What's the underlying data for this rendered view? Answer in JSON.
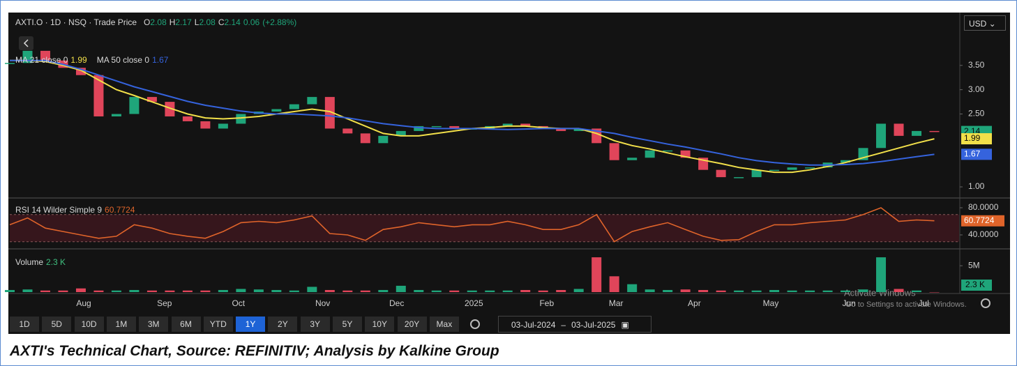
{
  "chart_data": [
    {
      "type": "candlestick",
      "title": "AXTI.O · 1D · NSQ · Trade Price",
      "ohlc": [
        {
          "label": "O",
          "value": 2.08
        },
        {
          "label": "H",
          "value": 2.17
        },
        {
          "label": "L",
          "value": 2.08
        },
        {
          "label": "C",
          "value": 2.14
        }
      ],
      "change": 0.06,
      "change_label": "(+2.88%)",
      "up_color": "#1fa57a",
      "down_color": "#e0455a",
      "x": [
        0,
        1,
        2,
        3,
        4,
        5,
        6,
        7,
        8,
        9,
        10,
        11,
        12,
        13,
        14,
        15,
        16,
        17,
        18,
        19,
        20,
        21,
        22,
        23,
        24,
        25,
        26,
        27,
        28,
        29,
        30,
        31,
        32,
        33,
        34,
        35,
        36,
        37,
        38,
        39,
        40,
        41,
        42,
        43,
        44,
        45,
        46,
        47,
        48,
        49,
        50,
        51,
        52
      ],
      "values": [
        3.55,
        3.8,
        3.6,
        3.45,
        3.3,
        2.45,
        2.5,
        2.85,
        2.75,
        2.45,
        2.35,
        2.2,
        2.3,
        2.5,
        2.55,
        2.6,
        2.7,
        2.85,
        2.2,
        2.1,
        1.9,
        2.05,
        2.15,
        2.25,
        2.25,
        2.2,
        2.2,
        2.25,
        2.3,
        2.25,
        2.2,
        2.15,
        2.2,
        1.9,
        1.55,
        1.6,
        1.75,
        1.75,
        1.6,
        1.35,
        1.2,
        1.2,
        1.35,
        1.35,
        1.4,
        1.4,
        1.5,
        1.55,
        1.8,
        2.3,
        2.05,
        2.15,
        2.14
      ],
      "series": [
        {
          "name": "MA 21 close 0",
          "color": "#f2e04a",
          "values": [
            3.6,
            3.6,
            3.58,
            3.5,
            3.4,
            3.2,
            3.0,
            2.88,
            2.75,
            2.62,
            2.5,
            2.42,
            2.4,
            2.42,
            2.45,
            2.5,
            2.55,
            2.6,
            2.55,
            2.4,
            2.25,
            2.1,
            2.05,
            2.05,
            2.1,
            2.15,
            2.2,
            2.22,
            2.25,
            2.25,
            2.22,
            2.2,
            2.2,
            2.1,
            1.95,
            1.85,
            1.78,
            1.7,
            1.62,
            1.55,
            1.48,
            1.4,
            1.35,
            1.3,
            1.3,
            1.35,
            1.42,
            1.5,
            1.6,
            1.7,
            1.8,
            1.9,
            1.99
          ]
        },
        {
          "name": "MA 50 close 0",
          "color": "#3563dd",
          "values": [
            3.6,
            3.6,
            3.6,
            3.52,
            3.42,
            3.3,
            3.18,
            3.06,
            2.96,
            2.86,
            2.76,
            2.68,
            2.62,
            2.56,
            2.52,
            2.5,
            2.5,
            2.48,
            2.46,
            2.42,
            2.36,
            2.3,
            2.26,
            2.22,
            2.2,
            2.2,
            2.2,
            2.19,
            2.18,
            2.19,
            2.2,
            2.2,
            2.2,
            2.15,
            2.1,
            2.02,
            1.95,
            1.88,
            1.82,
            1.75,
            1.68,
            1.6,
            1.54,
            1.5,
            1.47,
            1.45,
            1.45,
            1.46,
            1.48,
            1.52,
            1.57,
            1.62,
            1.67
          ]
        }
      ],
      "xlim": [
        0,
        53
      ],
      "xticks": [
        {
          "value": 4.16,
          "label": "Aug"
        },
        {
          "value": 8.7,
          "label": "Sep"
        },
        {
          "value": 12.86,
          "label": "Oct"
        },
        {
          "value": 17.6,
          "label": "Nov"
        },
        {
          "value": 21.76,
          "label": "Dec"
        },
        {
          "value": 26.1,
          "label": "2025"
        },
        {
          "value": 30.2,
          "label": "Feb"
        },
        {
          "value": 34.1,
          "label": "Mar"
        },
        {
          "value": 38.5,
          "label": "Apr"
        },
        {
          "value": 42.8,
          "label": "May"
        },
        {
          "value": 47.2,
          "label": "Jun"
        },
        {
          "value": 51.4,
          "label": "Jul"
        }
      ],
      "ylim": [
        0.8,
        4.53
      ],
      "yticks": [
        {
          "value": 1,
          "label": "1.00"
        },
        {
          "value": 2.5,
          "label": "2.50"
        },
        {
          "value": 3,
          "label": "3.00"
        },
        {
          "value": 3.5,
          "label": "3.50"
        }
      ]
    },
    {
      "type": "line",
      "title": "RSI 14 Wilder Simple 9",
      "color": "#e0642a",
      "levels": [
        30,
        70
      ],
      "x": [
        0,
        1,
        2,
        3,
        4,
        5,
        6,
        7,
        8,
        9,
        10,
        11,
        12,
        13,
        14,
        15,
        16,
        17,
        18,
        19,
        20,
        21,
        22,
        23,
        24,
        25,
        26,
        27,
        28,
        29,
        30,
        31,
        32,
        33,
        34,
        35,
        36,
        37,
        38,
        39,
        40,
        41,
        42,
        43,
        44,
        45,
        46,
        47,
        48,
        49,
        50,
        51,
        52
      ],
      "values": [
        55,
        65,
        50,
        45,
        40,
        35,
        38,
        55,
        50,
        42,
        38,
        35,
        45,
        58,
        60,
        58,
        62,
        68,
        42,
        40,
        32,
        48,
        52,
        58,
        55,
        52,
        55,
        55,
        60,
        55,
        48,
        48,
        55,
        70,
        30,
        45,
        52,
        58,
        48,
        38,
        32,
        33,
        45,
        55,
        55,
        58,
        60,
        62,
        70,
        80,
        60,
        62,
        60.7724
      ],
      "ylim": [
        21.5,
        91.3
      ],
      "yticks": [
        {
          "value": 40,
          "label": "40.0000"
        },
        {
          "value": 80,
          "label": "80.0000"
        }
      ]
    },
    {
      "type": "bar",
      "title": "Volume",
      "up_color": "#1fa57a",
      "down_color": "#e0455a",
      "label_color": "#3fbf7f",
      "x": [
        0,
        1,
        2,
        3,
        4,
        5,
        6,
        7,
        8,
        9,
        10,
        11,
        12,
        13,
        14,
        15,
        16,
        17,
        18,
        19,
        20,
        21,
        22,
        23,
        24,
        25,
        26,
        27,
        28,
        29,
        30,
        31,
        32,
        33,
        34,
        35,
        36,
        37,
        38,
        39,
        40,
        41,
        42,
        43,
        44,
        45,
        46,
        47,
        48,
        49,
        50,
        51,
        52
      ],
      "values": [
        400000,
        500000,
        300000,
        300000,
        700000,
        300000,
        300000,
        400000,
        300000,
        300000,
        300000,
        300000,
        400000,
        600000,
        500000,
        400000,
        300000,
        1000000,
        400000,
        300000,
        300000,
        400000,
        1200000,
        400000,
        300000,
        300000,
        300000,
        300000,
        300000,
        400000,
        300000,
        400000,
        600000,
        6600000,
        3000000,
        1500000,
        500000,
        400000,
        500000,
        400000,
        300000,
        300000,
        300000,
        400000,
        300000,
        300000,
        300000,
        300000,
        500000,
        6600000,
        600000,
        300000,
        2300
      ],
      "value_labels": [
        null,
        null,
        null,
        null,
        null,
        null,
        null,
        null,
        null,
        null,
        null,
        null,
        null,
        null,
        null,
        null,
        null,
        null,
        null,
        null,
        null,
        null,
        null,
        null,
        null,
        null,
        null,
        null,
        null,
        null,
        null,
        null,
        null,
        null,
        null,
        null,
        null,
        null,
        null,
        null,
        null,
        null,
        null,
        null,
        null,
        null,
        null,
        null,
        null,
        null,
        null,
        null,
        "2.3 K"
      ],
      "ylim": [
        0,
        7800000
      ],
      "yticks": [
        {
          "value": 5000000,
          "label": "5M"
        }
      ]
    }
  ],
  "currency": "USD",
  "toolbar": {
    "ranges": [
      "1D",
      "5D",
      "10D",
      "1M",
      "3M",
      "6M",
      "YTD",
      "1Y",
      "2Y",
      "3Y",
      "5Y",
      "10Y",
      "20Y",
      "Max"
    ],
    "active_index": 7,
    "date_from": "03-Jul-2024",
    "date_to": "03-Jul-2025"
  },
  "watermark": [
    "Activate Windows",
    "Go to Settings to activate Windows."
  ],
  "caption": "AXTI's Technical Chart, Source: REFINITIV; Analysis by Kalkine Group"
}
